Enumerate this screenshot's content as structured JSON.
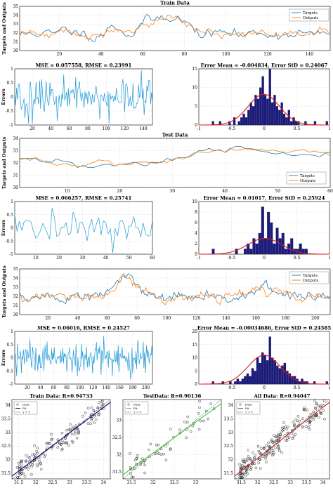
{
  "colors": {
    "targets": "#1f77b4",
    "outputs": "#ff7f0e",
    "hist": "#1a1a80",
    "fit_curve": "#e31a1c",
    "error_line": "#1f9ad6",
    "train_fit": "#000080",
    "test_fit": "#33cc33",
    "all_fit": "#cc2222"
  },
  "chart_data": [
    {
      "id": "train-series",
      "type": "line",
      "title": "Train Data",
      "ylabel": "Targets and Outputs",
      "xlim": [
        1,
        150
      ],
      "ylim": [
        30,
        35
      ],
      "xticks": [
        20,
        40,
        60,
        80,
        100,
        120,
        140
      ],
      "yticks": [
        30,
        31,
        32,
        33,
        34,
        35
      ],
      "series": [
        {
          "name": "Targets",
          "n": 150,
          "base": 31.9,
          "amp": 0.35,
          "seed": 11,
          "peaks": [
            {
              "at": 72,
              "h": 2.2,
              "w": 10
            },
            {
              "at": 22,
              "h": 0.4,
              "w": 4
            },
            {
              "at": 47,
              "h": 0.8,
              "w": 4
            },
            {
              "at": 60,
              "h": 0.7,
              "w": 3
            }
          ]
        },
        {
          "name": "Outputs",
          "n": 150,
          "base": 31.9,
          "amp": 0.3,
          "seed": 12,
          "lag": 1,
          "peaks": [
            {
              "at": 73,
              "h": 2.0,
              "w": 10
            },
            {
              "at": 22,
              "h": 0.4,
              "w": 4
            },
            {
              "at": 47,
              "h": 0.7,
              "w": 4
            },
            {
              "at": 60,
              "h": 0.6,
              "w": 3
            }
          ]
        }
      ]
    },
    {
      "id": "train-errors",
      "type": "line",
      "title": "MSE = 0.057558, RMSE = 0.23991",
      "ylabel": "Errors",
      "xlim": [
        1,
        150
      ],
      "ylim": [
        -1,
        1
      ],
      "xticks": [
        20,
        40,
        60,
        80,
        100,
        120,
        140
      ],
      "yticks": [
        -1,
        -0.5,
        0,
        0.5,
        1
      ],
      "series": [
        {
          "n": 150,
          "amp": 0.32,
          "seed": 21
        }
      ]
    },
    {
      "id": "train-hist",
      "type": "bar",
      "title": "Error Mean = -0.004834, Error StD = 0.24067",
      "xlim": [
        -1,
        1
      ],
      "ylim": [
        0,
        15
      ],
      "xticks": [
        -1,
        -0.5,
        0,
        0.5,
        1
      ],
      "yticks": [
        0,
        5,
        10,
        15
      ],
      "mean": -0.004834,
      "std": 0.24067,
      "peak": 8.2,
      "values": [
        1,
        0,
        0,
        1,
        0,
        0,
        0,
        1,
        0,
        2,
        0,
        1,
        2,
        3,
        2,
        4,
        6,
        5,
        8,
        7,
        10,
        13,
        8,
        7,
        15,
        6,
        8,
        5,
        4,
        6,
        3,
        2,
        4,
        1,
        2,
        1,
        1,
        0,
        0,
        1,
        0,
        0,
        0,
        1,
        0,
        0,
        0,
        0,
        1
      ]
    },
    {
      "id": "test-series",
      "type": "line",
      "title": "Test Data",
      "ylabel": "Targets and Outputs",
      "xlim": [
        1,
        60
      ],
      "ylim": [
        30,
        34
      ],
      "xticks": [
        10,
        20,
        30,
        40,
        50,
        60
      ],
      "yticks": [
        30,
        31,
        32,
        33,
        34
      ],
      "series": [
        {
          "name": "Targets",
          "n": 60,
          "base": 32.4,
          "amp": 0.2,
          "seed": 31,
          "trend": [
            [
              1,
              32.1
            ],
            [
              15,
              31.8
            ],
            [
              25,
              31.9
            ],
            [
              35,
              32.8
            ],
            [
              45,
              33.1
            ],
            [
              60,
              32.6
            ]
          ]
        },
        {
          "name": "Outputs",
          "n": 60,
          "base": 32.4,
          "amp": 0.18,
          "seed": 32,
          "trend": [
            [
              1,
              32.2
            ],
            [
              15,
              31.9
            ],
            [
              25,
              32.0
            ],
            [
              35,
              32.9
            ],
            [
              45,
              33.2
            ],
            [
              60,
              32.7
            ]
          ]
        }
      ]
    },
    {
      "id": "test-errors",
      "type": "line",
      "title": "MSE = 0.066257, RMSE = 0.25741",
      "ylabel": "Errors",
      "xlim": [
        1,
        60
      ],
      "ylim": [
        -1,
        1
      ],
      "xticks": [
        10,
        20,
        30,
        40,
        50,
        60
      ],
      "yticks": [
        -1,
        -0.5,
        0,
        0.5,
        1
      ],
      "series": [
        {
          "n": 60,
          "amp": 0.3,
          "seed": 41
        }
      ]
    },
    {
      "id": "test-hist",
      "type": "bar",
      "title": "Error Mean = 0.01017, Error StD = 0.25924",
      "xlim": [
        -1,
        1
      ],
      "ylim": [
        0,
        10
      ],
      "xticks": [
        -1,
        -0.5,
        0,
        0.5,
        1
      ],
      "yticks": [
        0,
        2,
        4,
        6,
        8,
        10
      ],
      "mean": 0.01017,
      "std": 0.25924,
      "peak": 3,
      "values": [
        1,
        0,
        0,
        0,
        0,
        0,
        0,
        0,
        1,
        0,
        0,
        1,
        2,
        1,
        3,
        2,
        4,
        9,
        3,
        8,
        6,
        2,
        5,
        3,
        4,
        1,
        2,
        3,
        1,
        1,
        2,
        1,
        1,
        0,
        0,
        0,
        0,
        0,
        0,
        0
      ]
    },
    {
      "id": "all-series",
      "type": "line",
      "title": "",
      "ylabel": "Targets and Outputs",
      "xlim": [
        1,
        210
      ],
      "ylim": [
        30,
        35
      ],
      "xticks": [
        20,
        40,
        60,
        80,
        100,
        120,
        140,
        160,
        180,
        200
      ],
      "yticks": [
        30,
        31,
        32,
        33,
        34,
        35
      ],
      "series": [
        {
          "name": "Targets",
          "n": 210,
          "base": 31.9,
          "amp": 0.35,
          "seed": 51,
          "peaks": [
            {
              "at": 72,
              "h": 2.2,
              "w": 10
            },
            {
              "at": 165,
              "h": 0.9,
              "w": 15
            }
          ]
        },
        {
          "name": "Outputs",
          "n": 210,
          "base": 31.9,
          "amp": 0.3,
          "seed": 52,
          "lag": 1,
          "peaks": [
            {
              "at": 73,
              "h": 2.0,
              "w": 10
            },
            {
              "at": 165,
              "h": 0.8,
              "w": 15
            }
          ]
        }
      ]
    },
    {
      "id": "all-errors",
      "type": "line",
      "title": "MSE = 0.06016, RMSE = 0.24527",
      "ylabel": "Errors",
      "xlim": [
        1,
        210
      ],
      "ylim": [
        -1,
        1
      ],
      "xticks": [
        20,
        40,
        60,
        80,
        100,
        120,
        140,
        160,
        180,
        200
      ],
      "yticks": [
        -1,
        -0.5,
        0,
        0.5,
        1
      ],
      "series": [
        {
          "n": 210,
          "amp": 0.32,
          "seed": 61
        }
      ]
    },
    {
      "id": "all-hist",
      "type": "bar",
      "title": "Error Mean = -0.00034686, Error StD = 0.24585",
      "xlim": [
        -1,
        1
      ],
      "ylim": [
        0,
        20
      ],
      "xticks": [
        -0.5,
        0,
        0.5,
        1
      ],
      "yticks": [
        0,
        5,
        10,
        15,
        20
      ],
      "mean": -0.00034686,
      "std": 0.24585,
      "peak": 11,
      "values": [
        1,
        0,
        0,
        0,
        1,
        0,
        0,
        1,
        0,
        1,
        2,
        1,
        2,
        3,
        4,
        3,
        6,
        5,
        10,
        8,
        12,
        11,
        9,
        18,
        10,
        9,
        7,
        6,
        7,
        8,
        5,
        4,
        3,
        3,
        2,
        1,
        2,
        1,
        1,
        0,
        0,
        1,
        0,
        0,
        0,
        0,
        1
      ]
    },
    {
      "id": "train-reg",
      "type": "scatter",
      "title": "Train Data: R=0.94733",
      "xlim": [
        31.3,
        34.2
      ],
      "ylim": [
        31.3,
        34.2
      ],
      "xticks": [
        31.5,
        32,
        32.5,
        33,
        33.5,
        34
      ],
      "yticks": [
        31.5,
        32,
        32.5,
        33,
        33.5,
        34
      ],
      "legend": [
        "Data",
        "Fit",
        "Y = T"
      ],
      "n": 150,
      "seed": 71,
      "noise": 0.22,
      "slope": 0.93
    },
    {
      "id": "test-reg",
      "type": "scatter",
      "title": "TestData: R=0.90136",
      "xlim": [
        31.3,
        33.6
      ],
      "ylim": [
        31.3,
        33.6
      ],
      "xticks": [
        31.5,
        32,
        32.5,
        33
      ],
      "yticks": [
        31.5,
        32,
        32.5,
        33
      ],
      "legend": [
        "Data",
        "Fit",
        "Y = T"
      ],
      "n": 60,
      "seed": 81,
      "noise": 0.2,
      "slope": 0.9
    },
    {
      "id": "all-reg",
      "type": "scatter",
      "title": "All Data: R=0.94047",
      "xlim": [
        31.3,
        34.2
      ],
      "ylim": [
        31.3,
        34.2
      ],
      "xticks": [
        31.5,
        32,
        32.5,
        33,
        33.5,
        34
      ],
      "yticks": [
        31.5,
        32,
        32.5,
        33,
        33.5,
        34
      ],
      "legend": [
        "Data",
        "Fit",
        "Y = T"
      ],
      "n": 210,
      "seed": 91,
      "noise": 0.22,
      "slope": 0.93
    }
  ]
}
